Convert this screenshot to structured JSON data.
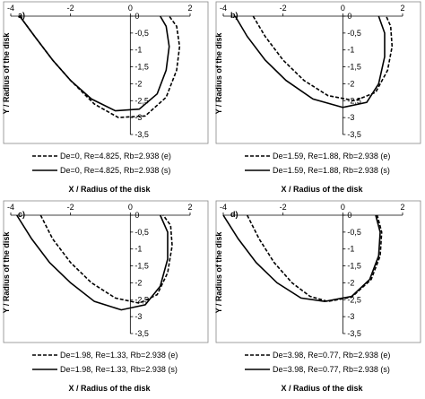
{
  "chart_data": [
    {
      "type": "line",
      "label": "a)",
      "xlabel": "X / Radius of the disk",
      "ylabel": "Y / Radius of the disk",
      "xlim": [
        -4,
        2
      ],
      "xticks": [
        -4,
        -2,
        0,
        2
      ],
      "ylim": [
        -3.5,
        0
      ],
      "yticks": [
        0,
        {
          "value": -0.5,
          "label": "-0,5"
        },
        -1,
        {
          "value": -1.5,
          "label": "-1,5"
        },
        -2,
        {
          "value": -2.5,
          "label": "-2,5"
        },
        -3,
        {
          "value": -3.5,
          "label": "-3,5"
        }
      ],
      "series": [
        {
          "name": "De=0, Re=4.825, Rb=2.938 (e)",
          "color": "#000000",
          "line_style": "dashed",
          "x": [
            -3.7,
            -3.2,
            -2.6,
            -2,
            -1.2,
            -0.4,
            0.5,
            1.2,
            1.55,
            1.65,
            1.55,
            1.3
          ],
          "values": [
            0,
            -0.6,
            -1.3,
            -1.9,
            -2.6,
            -3.0,
            -2.95,
            -2.4,
            -1.6,
            -0.9,
            -0.3,
            0
          ]
        },
        {
          "name": "De=0, Re=4.825, Rb=2.938 (s)",
          "color": "#000000",
          "line_style": "solid",
          "x": [
            -3.7,
            -3.2,
            -2.6,
            -2,
            -1.3,
            -0.5,
            0.3,
            0.9,
            1.2,
            1.3,
            1.2,
            1.0
          ],
          "values": [
            0,
            -0.6,
            -1.3,
            -1.9,
            -2.45,
            -2.8,
            -2.75,
            -2.3,
            -1.6,
            -0.9,
            -0.3,
            0
          ]
        }
      ]
    },
    {
      "type": "line",
      "label": "b)",
      "xlabel": "X / Radius of the disk",
      "ylabel": "Y / Radius of the disk",
      "xlim": [
        -4,
        2
      ],
      "xticks": [
        -4,
        -2,
        0,
        2
      ],
      "ylim": [
        -3.5,
        0
      ],
      "yticks": [
        0,
        {
          "value": -0.5,
          "label": "-0,5"
        },
        -1,
        {
          "value": -1.5,
          "label": "-1,5"
        },
        -2,
        {
          "value": -2.5,
          "label": "-2,5"
        },
        -3,
        {
          "value": -3.5,
          "label": "-3,5"
        }
      ],
      "series": [
        {
          "name": "De=1.59, Re=1.88, Rb=2.938 (e)",
          "color": "#000000",
          "line_style": "dashed",
          "x": [
            -3.0,
            -2.6,
            -2.0,
            -1.3,
            -0.5,
            0.4,
            1.1,
            1.5,
            1.65,
            1.6,
            1.45
          ],
          "values": [
            0,
            -0.6,
            -1.3,
            -1.9,
            -2.35,
            -2.5,
            -2.25,
            -1.6,
            -0.9,
            -0.3,
            0
          ]
        },
        {
          "name": "De=1.59, Re=1.88, Rb=2.938 (s)",
          "color": "#000000",
          "line_style": "solid",
          "x": [
            -3.6,
            -3.2,
            -2.6,
            -1.9,
            -1.0,
            0,
            0.8,
            1.2,
            1.4,
            1.4,
            1.2
          ],
          "values": [
            0,
            -0.6,
            -1.3,
            -1.9,
            -2.45,
            -2.7,
            -2.55,
            -2.0,
            -1.2,
            -0.5,
            0
          ]
        }
      ]
    },
    {
      "type": "line",
      "label": "c)",
      "xlabel": "X / Radius of the disk",
      "ylabel": "Y / Radius of the disk",
      "xlim": [
        -4,
        2
      ],
      "xticks": [
        -4,
        -2,
        0,
        2
      ],
      "ylim": [
        -3.5,
        0
      ],
      "yticks": [
        0,
        {
          "value": -0.5,
          "label": "-0,5"
        },
        -1,
        {
          "value": -1.5,
          "label": "-1,5"
        },
        -2,
        {
          "value": -2.5,
          "label": "-2,5"
        },
        -3,
        {
          "value": -3.5,
          "label": "-3,5"
        }
      ],
      "series": [
        {
          "name": "De=1.98, Re=1.33, Rb=2.938 (e)",
          "color": "#000000",
          "line_style": "dashed",
          "x": [
            -3.0,
            -2.6,
            -2.0,
            -1.3,
            -0.5,
            0.3,
            0.9,
            1.25,
            1.4,
            1.35,
            1.1
          ],
          "values": [
            0,
            -0.7,
            -1.4,
            -2.0,
            -2.45,
            -2.6,
            -2.35,
            -1.7,
            -0.9,
            -0.3,
            0
          ]
        },
        {
          "name": "De=1.98, Re=1.33, Rb=2.938 (s)",
          "color": "#000000",
          "line_style": "solid",
          "x": [
            -3.8,
            -3.3,
            -2.7,
            -2.0,
            -1.2,
            -0.3,
            0.5,
            1.0,
            1.25,
            1.25,
            1.0
          ],
          "values": [
            0,
            -0.7,
            -1.4,
            -2.0,
            -2.55,
            -2.8,
            -2.65,
            -2.1,
            -1.3,
            -0.5,
            0
          ]
        }
      ]
    },
    {
      "type": "line",
      "label": "d)",
      "xlabel": "X / Radius of the disk",
      "ylabel": "Y / Radius of the disk",
      "xlim": [
        -4,
        2
      ],
      "xticks": [
        -4,
        -2,
        0,
        2
      ],
      "ylim": [
        -3.5,
        0
      ],
      "yticks": [
        0,
        {
          "value": -0.5,
          "label": "-0,5"
        },
        -1,
        {
          "value": -1.5,
          "label": "-1,5"
        },
        -2,
        {
          "value": -2.5,
          "label": "-2,5"
        },
        -3,
        {
          "value": -3.5,
          "label": "-3,5"
        }
      ],
      "series": [
        {
          "name": "De=3.98, Re=0.77, Rb=2.938 (e)",
          "color": "#000000",
          "line_style": "dashed",
          "x": [
            -3.2,
            -2.8,
            -2.3,
            -1.7,
            -1.1,
            -0.5,
            0.3,
            0.95,
            1.25,
            1.3,
            1.15
          ],
          "values": [
            0,
            -0.7,
            -1.4,
            -2.0,
            -2.4,
            -2.55,
            -2.42,
            -1.9,
            -1.2,
            -0.5,
            0
          ]
        },
        {
          "name": "De=3.98, Re=0.77, Rb=2.938 (s)",
          "color": "#000000",
          "line_style": "solid",
          "x": [
            -4,
            -3.5,
            -2.9,
            -2.2,
            -1.4,
            -0.6,
            0.3,
            0.9,
            1.2,
            1.25,
            1.1
          ],
          "values": [
            0,
            -0.7,
            -1.4,
            -2.0,
            -2.45,
            -2.55,
            -2.4,
            -1.9,
            -1.2,
            -0.5,
            0
          ]
        }
      ]
    }
  ]
}
